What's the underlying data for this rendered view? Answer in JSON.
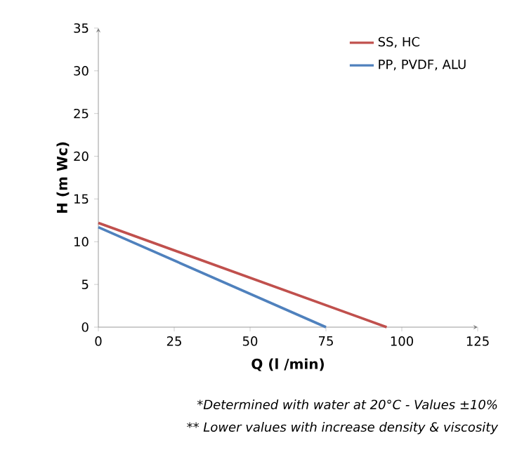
{
  "chart_data": {
    "type": "line",
    "xlabel": "Q  (l /min)",
    "ylabel": "H (m Wc)",
    "series": [
      {
        "name": "SS, HC",
        "color": "#c0504d",
        "x": [
          0,
          95
        ],
        "values": [
          12.2,
          0
        ]
      },
      {
        "name": "PP, PVDF, ALU",
        "color": "#4f81bd",
        "x": [
          0,
          75
        ],
        "values": [
          11.7,
          0
        ]
      }
    ],
    "xlim": [
      0,
      125
    ],
    "xticks": [
      0,
      25,
      50,
      75,
      100,
      125
    ],
    "ylim": [
      0,
      35
    ],
    "yticks": [
      0,
      5,
      10,
      15,
      20,
      25,
      30,
      35
    ],
    "grid": false,
    "legend": "top right",
    "marker": "none",
    "line_style": "solid",
    "annotations": [
      "*Determined  with water at 20°C - Values ±10%",
      "** Lower values  with increase density & viscosity"
    ]
  }
}
